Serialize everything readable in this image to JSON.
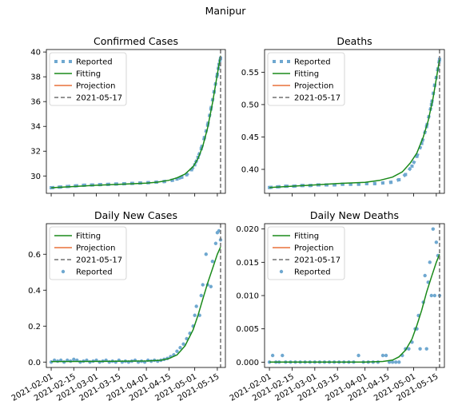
{
  "suptitle": "Manipur",
  "colors": {
    "reported": "#6fa8d0",
    "fitting": "#1a8a1a",
    "projection": "#e8703a",
    "vline": "#707070"
  },
  "legend_labels": {
    "reported": "Reported",
    "fitting": "Fitting",
    "projection": "Projection",
    "vline": "2021-05-17"
  },
  "x_tick_labels": [
    "2021-02-01",
    "2021-02-15",
    "2021-03-01",
    "2021-03-15",
    "2021-04-01",
    "2021-04-15",
    "2021-05-01",
    "2021-05-15"
  ],
  "chart_data": [
    {
      "type": "line",
      "title": "Confirmed Cases",
      "legend_position": "upper-left",
      "legend_order": [
        "reported",
        "fitting",
        "projection",
        "vline"
      ],
      "x_range": [
        "2021-01-29",
        "2021-05-20"
      ],
      "ylim": [
        28.6,
        40.2
      ],
      "y_ticks": [
        30,
        32,
        34,
        36,
        38,
        40
      ],
      "vline": "2021-05-17",
      "reported_style": "dashed-squares",
      "reported": [
        [
          "2021-02-01",
          29.05
        ],
        [
          "2021-02-06",
          29.1
        ],
        [
          "2021-02-11",
          29.15
        ],
        [
          "2021-02-16",
          29.2
        ],
        [
          "2021-02-21",
          29.25
        ],
        [
          "2021-02-26",
          29.27
        ],
        [
          "2021-03-03",
          29.3
        ],
        [
          "2021-03-08",
          29.32
        ],
        [
          "2021-03-13",
          29.35
        ],
        [
          "2021-03-18",
          29.37
        ],
        [
          "2021-03-23",
          29.4
        ],
        [
          "2021-03-28",
          29.43
        ],
        [
          "2021-04-02",
          29.46
        ],
        [
          "2021-04-07",
          29.5
        ],
        [
          "2021-04-12",
          29.55
        ],
        [
          "2021-04-17",
          29.65
        ],
        [
          "2021-04-20",
          29.75
        ],
        [
          "2021-04-23",
          29.9
        ],
        [
          "2021-04-26",
          30.1
        ],
        [
          "2021-04-29",
          30.5
        ],
        [
          "2021-05-01",
          30.9
        ],
        [
          "2021-05-03",
          31.5
        ],
        [
          "2021-05-05",
          32.2
        ],
        [
          "2021-05-07",
          33.1
        ],
        [
          "2021-05-09",
          34.1
        ],
        [
          "2021-05-11",
          35.4
        ],
        [
          "2021-05-13",
          36.8
        ],
        [
          "2021-05-15",
          38.2
        ],
        [
          "2021-05-16",
          39
        ],
        [
          "2021-05-17",
          39.5
        ]
      ],
      "fitting": [
        [
          "2021-02-01",
          29.05
        ],
        [
          "2021-02-15",
          29.15
        ],
        [
          "2021-03-01",
          29.25
        ],
        [
          "2021-03-15",
          29.32
        ],
        [
          "2021-04-01",
          29.42
        ],
        [
          "2021-04-08",
          29.5
        ],
        [
          "2021-04-15",
          29.65
        ],
        [
          "2021-04-20",
          29.85
        ],
        [
          "2021-04-25",
          30.15
        ],
        [
          "2021-04-30",
          30.75
        ],
        [
          "2021-05-03",
          31.4
        ],
        [
          "2021-05-06",
          32.4
        ],
        [
          "2021-05-09",
          33.9
        ],
        [
          "2021-05-12",
          35.9
        ],
        [
          "2021-05-15",
          38.2
        ],
        [
          "2021-05-17",
          39.7
        ]
      ]
    },
    {
      "type": "line",
      "title": "Deaths",
      "legend_position": "upper-left",
      "legend_order": [
        "reported",
        "fitting",
        "projection",
        "vline"
      ],
      "x_range": [
        "2021-01-29",
        "2021-05-20"
      ],
      "ylim": [
        0.363,
        0.585
      ],
      "y_ticks": [
        0.4,
        0.45,
        0.5,
        0.55
      ],
      "y_tick_labels": [
        "0.40",
        "0.45",
        "0.50",
        "0.55"
      ],
      "vline": "2021-05-17",
      "reported_style": "dashed-squares",
      "reported": [
        [
          "2021-02-01",
          0.372
        ],
        [
          "2021-02-06",
          0.373
        ],
        [
          "2021-02-11",
          0.374
        ],
        [
          "2021-02-16",
          0.374
        ],
        [
          "2021-02-21",
          0.375
        ],
        [
          "2021-02-26",
          0.375
        ],
        [
          "2021-03-03",
          0.376
        ],
        [
          "2021-03-08",
          0.376
        ],
        [
          "2021-03-13",
          0.376
        ],
        [
          "2021-03-18",
          0.377
        ],
        [
          "2021-03-23",
          0.377
        ],
        [
          "2021-03-28",
          0.377
        ],
        [
          "2021-04-02",
          0.378
        ],
        [
          "2021-04-07",
          0.378
        ],
        [
          "2021-04-12",
          0.379
        ],
        [
          "2021-04-17",
          0.38
        ],
        [
          "2021-04-22",
          0.384
        ],
        [
          "2021-04-26",
          0.392
        ],
        [
          "2021-04-30",
          0.405
        ],
        [
          "2021-05-03",
          0.42
        ],
        [
          "2021-05-06",
          0.44
        ],
        [
          "2021-05-09",
          0.466
        ],
        [
          "2021-05-12",
          0.5
        ],
        [
          "2021-05-14",
          0.53
        ],
        [
          "2021-05-16",
          0.555
        ],
        [
          "2021-05-17",
          0.57
        ]
      ],
      "fitting": [
        [
          "2021-02-01",
          0.372
        ],
        [
          "2021-02-15",
          0.374
        ],
        [
          "2021-03-01",
          0.376
        ],
        [
          "2021-03-15",
          0.378
        ],
        [
          "2021-04-01",
          0.38
        ],
        [
          "2021-04-10",
          0.383
        ],
        [
          "2021-04-18",
          0.388
        ],
        [
          "2021-04-24",
          0.396
        ],
        [
          "2021-04-29",
          0.41
        ],
        [
          "2021-05-03",
          0.425
        ],
        [
          "2021-05-07",
          0.45
        ],
        [
          "2021-05-10",
          0.475
        ],
        [
          "2021-05-13",
          0.51
        ],
        [
          "2021-05-15",
          0.54
        ],
        [
          "2021-05-17",
          0.57
        ]
      ]
    },
    {
      "type": "line",
      "title": "Daily New Cases",
      "legend_position": "upper-left",
      "legend_order": [
        "fitting",
        "projection",
        "vline",
        "reported"
      ],
      "x_range": [
        "2021-01-29",
        "2021-05-20"
      ],
      "ylim": [
        -0.03,
        0.77
      ],
      "y_ticks": [
        0,
        0.2,
        0.4,
        0.6
      ],
      "y_tick_labels": [
        "0.0",
        "0.2",
        "0.4",
        "0.6"
      ],
      "vline": "2021-05-17",
      "reported_style": "dots",
      "reported": [
        [
          "2021-02-01",
          0
        ],
        [
          "2021-02-03",
          0.01
        ],
        [
          "2021-02-05",
          0.005
        ],
        [
          "2021-02-07",
          0.01
        ],
        [
          "2021-02-09",
          0
        ],
        [
          "2021-02-11",
          0.01
        ],
        [
          "2021-02-13",
          0.005
        ],
        [
          "2021-02-15",
          0.015
        ],
        [
          "2021-02-17",
          0.01
        ],
        [
          "2021-02-19",
          0
        ],
        [
          "2021-02-21",
          0.005
        ],
        [
          "2021-02-23",
          0.01
        ],
        [
          "2021-02-25",
          0
        ],
        [
          "2021-02-27",
          0.005
        ],
        [
          "2021-03-01",
          0.01
        ],
        [
          "2021-03-03",
          0
        ],
        [
          "2021-03-05",
          0.005
        ],
        [
          "2021-03-07",
          0.01
        ],
        [
          "2021-03-09",
          0
        ],
        [
          "2021-03-11",
          0.005
        ],
        [
          "2021-03-13",
          0
        ],
        [
          "2021-03-15",
          0.01
        ],
        [
          "2021-03-17",
          0
        ],
        [
          "2021-03-19",
          0.005
        ],
        [
          "2021-03-21",
          0
        ],
        [
          "2021-03-23",
          0.005
        ],
        [
          "2021-03-25",
          0.01
        ],
        [
          "2021-03-27",
          0
        ],
        [
          "2021-03-29",
          0.005
        ],
        [
          "2021-03-31",
          0
        ],
        [
          "2021-04-02",
          0.01
        ],
        [
          "2021-04-04",
          0.005
        ],
        [
          "2021-04-06",
          0.01
        ],
        [
          "2021-04-08",
          0.005
        ],
        [
          "2021-04-10",
          0.01
        ],
        [
          "2021-04-12",
          0.015
        ],
        [
          "2021-04-14",
          0.02
        ],
        [
          "2021-04-16",
          0.03
        ],
        [
          "2021-04-18",
          0.04
        ],
        [
          "2021-04-20",
          0.06
        ],
        [
          "2021-04-22",
          0.08
        ],
        [
          "2021-04-24",
          0.1
        ],
        [
          "2021-04-26",
          0.13
        ],
        [
          "2021-04-28",
          0.16
        ],
        [
          "2021-04-30",
          0.2
        ],
        [
          "2021-05-01",
          0.26
        ],
        [
          "2021-05-02",
          0.31
        ],
        [
          "2021-05-04",
          0.26
        ],
        [
          "2021-05-05",
          0.37
        ],
        [
          "2021-05-06",
          0.43
        ],
        [
          "2021-05-08",
          0.6
        ],
        [
          "2021-05-09",
          0.43
        ],
        [
          "2021-05-11",
          0.42
        ],
        [
          "2021-05-12",
          0.56
        ],
        [
          "2021-05-14",
          0.66
        ],
        [
          "2021-05-15",
          0.72
        ],
        [
          "2021-05-16",
          0.73
        ],
        [
          "2021-05-17",
          0.68
        ]
      ],
      "fitting": [
        [
          "2021-02-01",
          0.003
        ],
        [
          "2021-03-01",
          0.004
        ],
        [
          "2021-04-01",
          0.006
        ],
        [
          "2021-04-10",
          0.01
        ],
        [
          "2021-04-15",
          0.02
        ],
        [
          "2021-04-20",
          0.04
        ],
        [
          "2021-04-25",
          0.09
        ],
        [
          "2021-04-30",
          0.18
        ],
        [
          "2021-05-03",
          0.26
        ],
        [
          "2021-05-06",
          0.35
        ],
        [
          "2021-05-09",
          0.44
        ],
        [
          "2021-05-12",
          0.52
        ],
        [
          "2021-05-15",
          0.6
        ],
        [
          "2021-05-17",
          0.64
        ]
      ]
    },
    {
      "type": "line",
      "title": "Daily New Deaths",
      "legend_position": "upper-left",
      "legend_order": [
        "fitting",
        "projection",
        "vline",
        "reported"
      ],
      "x_range": [
        "2021-01-29",
        "2021-05-20"
      ],
      "ylim": [
        -0.0008,
        0.0208
      ],
      "y_ticks": [
        0,
        0.005,
        0.01,
        0.015,
        0.02
      ],
      "y_tick_labels": [
        "0.000",
        "0.005",
        "0.010",
        "0.015",
        "0.020"
      ],
      "vline": "2021-05-17",
      "reported_style": "dots",
      "reported": [
        [
          "2021-02-01",
          0
        ],
        [
          "2021-02-03",
          0.001
        ],
        [
          "2021-02-05",
          0
        ],
        [
          "2021-02-07",
          0
        ],
        [
          "2021-02-09",
          0.001
        ],
        [
          "2021-02-11",
          0
        ],
        [
          "2021-02-14",
          0
        ],
        [
          "2021-02-17",
          0
        ],
        [
          "2021-02-20",
          0
        ],
        [
          "2021-02-23",
          0
        ],
        [
          "2021-02-26",
          0
        ],
        [
          "2021-03-01",
          0
        ],
        [
          "2021-03-04",
          0
        ],
        [
          "2021-03-07",
          0
        ],
        [
          "2021-03-10",
          0
        ],
        [
          "2021-03-13",
          0
        ],
        [
          "2021-03-16",
          0
        ],
        [
          "2021-03-19",
          0
        ],
        [
          "2021-03-22",
          0
        ],
        [
          "2021-03-25",
          0
        ],
        [
          "2021-03-28",
          0.001
        ],
        [
          "2021-03-31",
          0
        ],
        [
          "2021-04-03",
          0
        ],
        [
          "2021-04-06",
          0
        ],
        [
          "2021-04-09",
          0
        ],
        [
          "2021-04-12",
          0.001
        ],
        [
          "2021-04-14",
          0.001
        ],
        [
          "2021-04-16",
          0
        ],
        [
          "2021-04-18",
          0
        ],
        [
          "2021-04-20",
          0
        ],
        [
          "2021-04-22",
          0
        ],
        [
          "2021-04-24",
          0.001
        ],
        [
          "2021-04-26",
          0.002
        ],
        [
          "2021-04-28",
          0.002
        ],
        [
          "2021-04-30",
          0.003
        ],
        [
          "2021-05-02",
          0.005
        ],
        [
          "2021-05-03",
          0.005
        ],
        [
          "2021-05-04",
          0.007
        ],
        [
          "2021-05-05",
          0.002
        ],
        [
          "2021-05-07",
          0.009
        ],
        [
          "2021-05-08",
          0.013
        ],
        [
          "2021-05-09",
          0.002
        ],
        [
          "2021-05-10",
          0.012
        ],
        [
          "2021-05-11",
          0.015
        ],
        [
          "2021-05-12",
          0.01
        ],
        [
          "2021-05-13",
          0.02
        ],
        [
          "2021-05-14",
          0.01
        ],
        [
          "2021-05-15",
          0.018
        ],
        [
          "2021-05-16",
          0.016
        ],
        [
          "2021-05-17",
          0.01
        ]
      ],
      "fitting": [
        [
          "2021-02-01",
          0
        ],
        [
          "2021-03-01",
          0
        ],
        [
          "2021-04-01",
          0
        ],
        [
          "2021-04-12",
          0.0001
        ],
        [
          "2021-04-18",
          0.0003
        ],
        [
          "2021-04-22",
          0.0008
        ],
        [
          "2021-04-26",
          0.0018
        ],
        [
          "2021-04-30",
          0.0035
        ],
        [
          "2021-05-03",
          0.0055
        ],
        [
          "2021-05-06",
          0.0078
        ],
        [
          "2021-05-09",
          0.0105
        ],
        [
          "2021-05-12",
          0.0128
        ],
        [
          "2021-05-15",
          0.015
        ],
        [
          "2021-05-17",
          0.0162
        ]
      ]
    }
  ]
}
